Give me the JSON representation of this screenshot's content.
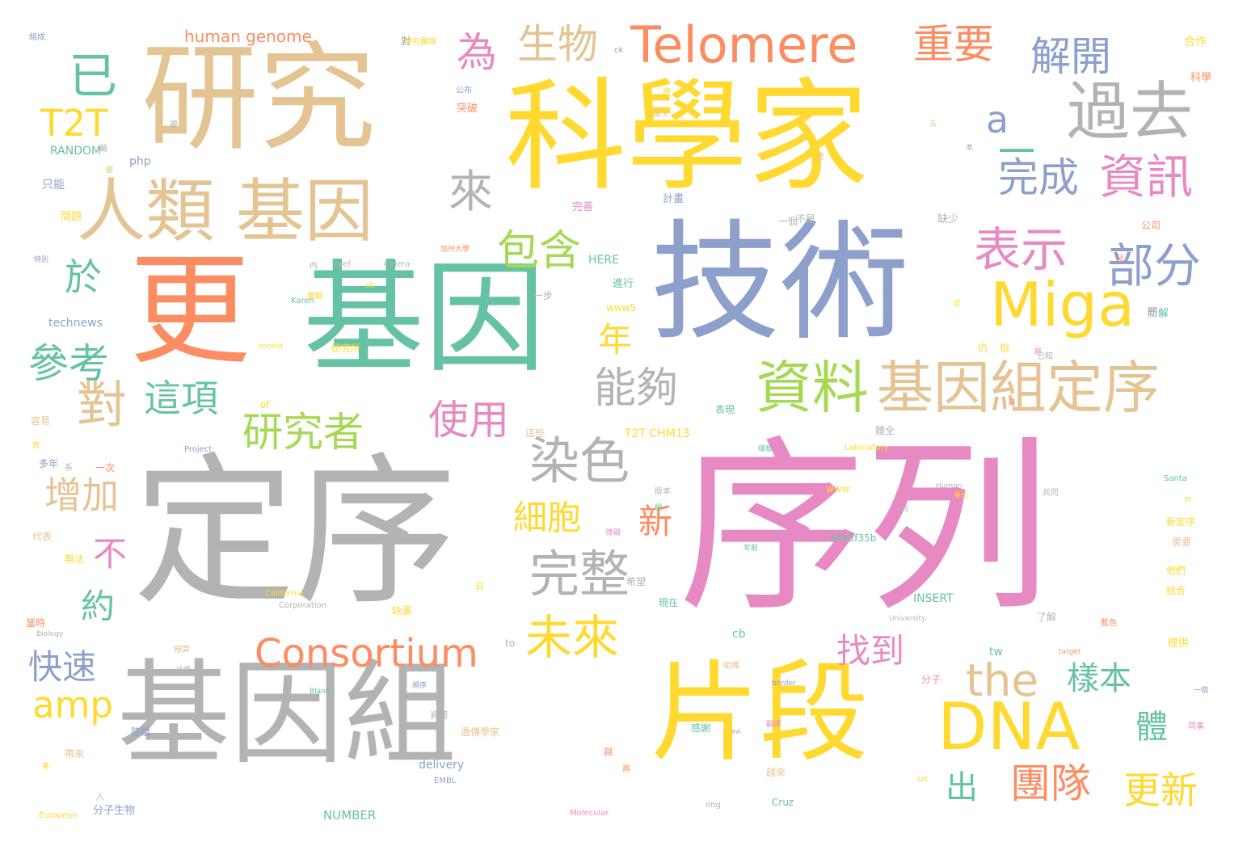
{
  "colors": {
    "tan": "#e5c494",
    "yellow": "#ffd92f",
    "orange": "#fc8d62",
    "teal": "#66c2a5",
    "blue": "#8da0cb",
    "pink": "#e78ac3",
    "green": "#a6d854",
    "gray": "#b3b3b3"
  },
  "words": [
    {
      "text": "序列",
      "color": "pink"
    },
    {
      "text": "定序",
      "color": "gray"
    },
    {
      "text": "科學家",
      "color": "yellow"
    },
    {
      "text": "技術",
      "color": "blue"
    },
    {
      "text": "研究",
      "color": "tan"
    },
    {
      "text": "基因組",
      "color": "gray"
    },
    {
      "text": "片段",
      "color": "yellow"
    },
    {
      "text": "基因",
      "color": "teal"
    },
    {
      "text": "更",
      "color": "orange"
    },
    {
      "text": "人類 基因",
      "color": "tan"
    },
    {
      "text": "Telomere",
      "color": "orange"
    },
    {
      "text": "過去",
      "color": "gray"
    },
    {
      "text": "資料",
      "color": "green"
    },
    {
      "text": "基因組定序",
      "color": "tan"
    },
    {
      "text": "Miga",
      "color": "yellow"
    },
    {
      "text": "DNA",
      "color": "yellow"
    },
    {
      "text": "Consortium",
      "color": "orange"
    },
    {
      "text": "染色",
      "color": "gray"
    },
    {
      "text": "完整",
      "color": "gray"
    },
    {
      "text": "the",
      "color": "tan"
    },
    {
      "text": "未來",
      "color": "yellow"
    },
    {
      "text": "表示",
      "color": "pink"
    },
    {
      "text": "部分",
      "color": "blue"
    },
    {
      "text": "資訊",
      "color": "pink"
    },
    {
      "text": "完成",
      "color": "blue"
    },
    {
      "text": "解開",
      "color": "blue"
    },
    {
      "text": "重要",
      "color": "orange"
    },
    {
      "text": "生物",
      "color": "tan"
    },
    {
      "text": "為",
      "color": "pink"
    },
    {
      "text": "已",
      "color": "teal"
    },
    {
      "text": "T2T",
      "color": "yellow"
    },
    {
      "text": "來",
      "color": "gray"
    },
    {
      "text": "包含",
      "color": "green"
    },
    {
      "text": "能夠",
      "color": "gray"
    },
    {
      "text": "研究者",
      "color": "green"
    },
    {
      "text": "這項",
      "color": "teal"
    },
    {
      "text": "對",
      "color": "tan"
    },
    {
      "text": "參考",
      "color": "teal"
    },
    {
      "text": "於",
      "color": "teal"
    },
    {
      "text": "使用",
      "color": "pink"
    },
    {
      "text": "年",
      "color": "yellow"
    },
    {
      "text": "增加",
      "color": "tan"
    },
    {
      "text": "細胞",
      "color": "yellow"
    },
    {
      "text": "新",
      "color": "orange"
    },
    {
      "text": "不",
      "color": "pink"
    },
    {
      "text": "約",
      "color": "teal"
    },
    {
      "text": "快速",
      "color": "blue"
    },
    {
      "text": "amp",
      "color": "yellow"
    },
    {
      "text": "找到",
      "color": "pink"
    },
    {
      "text": "樣本",
      "color": "teal"
    },
    {
      "text": "團隊",
      "color": "orange"
    },
    {
      "text": "更新",
      "color": "yellow"
    },
    {
      "text": "體",
      "color": "teal"
    },
    {
      "text": "出",
      "color": "teal"
    },
    {
      "text": "一",
      "color": "teal"
    },
    {
      "text": "a",
      "color": "blue"
    },
    {
      "text": "human genome",
      "color": "orange"
    },
    {
      "text": "RANDOM",
      "color": "teal"
    },
    {
      "text": "php",
      "color": "blue"
    },
    {
      "text": "只能",
      "color": "blue"
    },
    {
      "text": "問題",
      "color": "yellow"
    },
    {
      "text": "HERE",
      "color": "teal"
    },
    {
      "text": "www5",
      "color": "yellow"
    },
    {
      "text": "technews",
      "color": "blue"
    },
    {
      "text": "T2T CHM13",
      "color": "yellow"
    },
    {
      "text": "a4b3f35b",
      "color": "teal"
    },
    {
      "text": "INSERT",
      "color": "teal"
    },
    {
      "text": "NUMBER",
      "color": "teal"
    },
    {
      "text": "delivery",
      "color": "blue"
    },
    {
      "text": "Cruz",
      "color": "teal"
    },
    {
      "text": "分子生物",
      "color": "blue"
    },
    {
      "text": "Project",
      "color": "blue"
    },
    {
      "text": "Laboratory",
      "color": "yellow"
    },
    {
      "text": "Santa",
      "color": "teal"
    },
    {
      "text": "University",
      "color": "gray"
    },
    {
      "text": "California",
      "color": "yellow"
    },
    {
      "text": "Corporation",
      "color": "gray"
    },
    {
      "text": "Molecular",
      "color": "pink"
    },
    {
      "text": "European",
      "color": "yellow"
    },
    {
      "text": "EMBL",
      "color": "blue"
    },
    {
      "text": "Biology",
      "color": "gray"
    },
    {
      "text": "Blank",
      "color": "teal"
    },
    {
      "text": "border",
      "color": "blue"
    },
    {
      "text": "target",
      "color": "orange"
    },
    {
      "text": "Human",
      "color": "gray"
    },
    {
      "text": "Karen",
      "color": "teal"
    },
    {
      "text": "Celera",
      "color": "gray"
    },
    {
      "text": "href",
      "color": "gray"
    },
    {
      "text": "zoneid",
      "color": "yellow"
    },
    {
      "text": "of",
      "color": "yellow"
    },
    {
      "text": "to",
      "color": "gray"
    },
    {
      "text": "tw",
      "color": "teal"
    },
    {
      "text": "cb",
      "color": "teal"
    },
    {
      "text": "n",
      "color": "yellow"
    },
    {
      "text": "www",
      "color": "yellow"
    },
    {
      "text": "img",
      "color": "gray"
    },
    {
      "text": "src",
      "color": "yellow"
    },
    {
      "text": "aw",
      "color": "gray"
    },
    {
      "text": "ck",
      "color": "blue"
    },
    {
      "text": "alt",
      "color": "yellow"
    },
    {
      "text": "合作",
      "color": "yellow"
    },
    {
      "text": "科學",
      "color": "orange"
    },
    {
      "text": "公司",
      "color": "orange"
    },
    {
      "text": "新解",
      "color": "teal"
    },
    {
      "text": "計畫",
      "color": "blue"
    },
    {
      "text": "完善",
      "color": "pink"
    },
    {
      "text": "突破",
      "color": "orange"
    },
    {
      "text": "公布",
      "color": "blue"
    },
    {
      "text": "論文",
      "color": "tan"
    },
    {
      "text": "缺少",
      "color": "gray"
    },
    {
      "text": "一個",
      "color": "gray"
    },
    {
      "text": "不是",
      "color": "gray"
    },
    {
      "text": "進行",
      "color": "teal"
    },
    {
      "text": "一步",
      "color": "gray"
    },
    {
      "text": "仍",
      "color": "yellow"
    },
    {
      "text": "但",
      "color": "yellow"
    },
    {
      "text": "已知",
      "color": "gray"
    },
    {
      "text": "月",
      "color": "orange"
    },
    {
      "text": "容易",
      "color": "tan"
    },
    {
      "text": "多年",
      "color": "blue"
    },
    {
      "text": "代表",
      "color": "tan"
    },
    {
      "text": "無法",
      "color": "yellow"
    },
    {
      "text": "當時",
      "color": "orange"
    },
    {
      "text": "這些",
      "color": "tan"
    },
    {
      "text": "一次",
      "color": "orange"
    },
    {
      "text": "版本",
      "color": "gray"
    },
    {
      "text": "共同",
      "color": "gray"
    },
    {
      "text": "新定序",
      "color": "yellow"
    },
    {
      "text": "需要",
      "color": "tan"
    },
    {
      "text": "他們",
      "color": "yellow"
    },
    {
      "text": "結合",
      "color": "yellow"
    },
    {
      "text": "提供",
      "color": "yellow"
    },
    {
      "text": "了解",
      "color": "gray"
    },
    {
      "text": "現在",
      "color": "teal"
    },
    {
      "text": "希望",
      "color": "gray"
    },
    {
      "text": "缺漏",
      "color": "yellow"
    },
    {
      "text": "障礙",
      "color": "pink"
    },
    {
      "text": "組織",
      "color": "tan"
    },
    {
      "text": "資源",
      "color": "gray"
    },
    {
      "text": "越來",
      "color": "tan"
    },
    {
      "text": "分子",
      "color": "pink"
    },
    {
      "text": "感謝",
      "color": "teal"
    },
    {
      "text": "人",
      "color": "tan"
    },
    {
      "text": "體全",
      "color": "gray"
    },
    {
      "text": "年前",
      "color": "teal"
    },
    {
      "text": "樣板",
      "color": "teal"
    },
    {
      "text": "研究所",
      "color": "yellow"
    },
    {
      "text": "表現",
      "color": "teal"
    },
    {
      "text": "內",
      "color": "gray"
    },
    {
      "text": "延",
      "color": "orange"
    },
    {
      "text": "從",
      "color": "yellow"
    },
    {
      "text": "將",
      "color": "yellow"
    },
    {
      "text": "被",
      "color": "gray"
    },
    {
      "text": "去",
      "color": "tan"
    },
    {
      "text": "使",
      "color": "tan"
    },
    {
      "text": "對",
      "color": "blue"
    },
    {
      "text": "門",
      "color": "pink"
    },
    {
      "text": "日",
      "color": "yellow"
    },
    {
      "text": "將",
      "color": "pink"
    },
    {
      "text": "網",
      "color": "teal"
    },
    {
      "text": "同",
      "color": "gray"
    },
    {
      "text": "系",
      "color": "gray"
    },
    {
      "text": "鹼",
      "color": "gray"
    },
    {
      "text": "預算",
      "color": "tan"
    },
    {
      "text": "順序",
      "color": "blue"
    },
    {
      "text": "特別",
      "color": "blue"
    },
    {
      "text": "翻譯",
      "color": "pink"
    },
    {
      "text": "陸續",
      "color": "blue"
    },
    {
      "text": "帶來",
      "color": "tan"
    },
    {
      "text": "越",
      "color": "orange"
    },
    {
      "text": "再",
      "color": "orange"
    },
    {
      "text": "同事",
      "color": "pink"
    },
    {
      "text": "一個",
      "color": "blue"
    },
    {
      "text": "單位",
      "color": "yellow"
    },
    {
      "text": "成果",
      "color": "gray"
    },
    {
      "text": "實驗",
      "color": "yellow"
    },
    {
      "text": "遺傳學家",
      "color": "tan"
    },
    {
      "text": "藍色",
      "color": "orange"
    },
    {
      "text": "組成",
      "color": "blue"
    },
    {
      "text": "研究團隊",
      "color": "yellow"
    },
    {
      "text": "加州大學",
      "color": "orange"
    },
    {
      "text": "準",
      "color": "gray"
    },
    {
      "text": "華",
      "color": "yellow"
    },
    {
      "text": "資",
      "color": "yellow"
    },
    {
      "text": "部",
      "color": "green"
    },
    {
      "text": "碼",
      "color": "pink"
    },
    {
      "text": "數",
      "color": "teal"
    },
    {
      "text": "預",
      "color": "orange"
    }
  ]
}
